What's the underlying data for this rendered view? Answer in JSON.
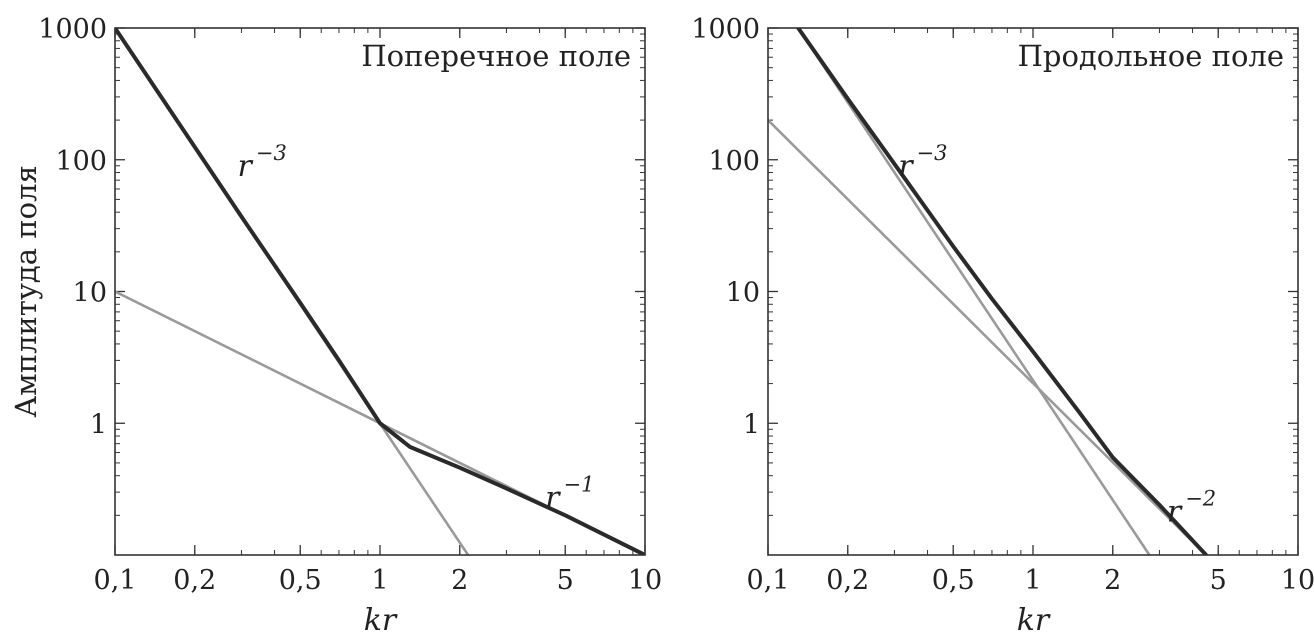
{
  "chart_data": [
    {
      "type": "line",
      "title": "Поперечное поле",
      "xscale": "log",
      "yscale": "log",
      "xlim": [
        0.1,
        10
      ],
      "ylim": [
        0.1,
        1000
      ],
      "xticks": [
        0.1,
        0.2,
        0.5,
        1,
        2,
        5,
        10
      ],
      "xtick_labels": [
        "0,1",
        "0,2",
        "0,5",
        "1",
        "2",
        "5",
        "10"
      ],
      "yticks": [
        1,
        10,
        100,
        1000
      ],
      "ytick_labels": [
        "1",
        "10",
        "100",
        "1000"
      ],
      "xlabel": "kr",
      "ylabel": "Амплитуда поля",
      "series": [
        {
          "name": "amplitude",
          "color": "#2a2a2a",
          "x": [
            0.1,
            0.15,
            0.2,
            0.3,
            0.5,
            0.7,
            1.0,
            1.3,
            2.0,
            3.0,
            5.0,
            10.0
          ],
          "y": [
            1000,
            296,
            125,
            37,
            8.2,
            3.0,
            1.0,
            0.66,
            0.46,
            0.32,
            0.2,
            0.1
          ]
        },
        {
          "name": "r^-3 asymptote",
          "color": "#9a9a9a",
          "x": [
            0.1,
            2.15
          ],
          "y": [
            1000,
            0.1
          ]
        },
        {
          "name": "r^-1 asymptote",
          "color": "#9a9a9a",
          "x": [
            0.1,
            10
          ],
          "y": [
            10,
            0.1
          ]
        }
      ],
      "annotations": [
        {
          "base": "r",
          "exponent": "−3",
          "x": 0.29,
          "y": 75
        },
        {
          "base": "r",
          "exponent": "−1",
          "x": 4.2,
          "y": 0.23
        }
      ]
    },
    {
      "type": "line",
      "title": "Продольное поле",
      "xscale": "log",
      "yscale": "log",
      "xlim": [
        0.1,
        10
      ],
      "ylim": [
        0.1,
        1000
      ],
      "xticks": [
        0.1,
        0.2,
        0.5,
        1,
        2,
        5,
        10
      ],
      "xtick_labels": [
        "0,1",
        "0,2",
        "0,5",
        "1",
        "2",
        "5",
        "10"
      ],
      "yticks": [
        1,
        10,
        100,
        1000
      ],
      "ytick_labels": [
        "1",
        "10",
        "100",
        "1000"
      ],
      "xlabel": "kr",
      "ylabel": "",
      "series": [
        {
          "name": "amplitude",
          "color": "#2a2a2a",
          "x": [
            0.13,
            0.2,
            0.3,
            0.5,
            0.7,
            1.0,
            1.5,
            2.0,
            3.0,
            4.5
          ],
          "y": [
            1000,
            290,
            93,
            22,
            8.8,
            3.5,
            1.2,
            0.55,
            0.24,
            0.1
          ]
        },
        {
          "name": "r^-3 asymptote",
          "color": "#9a9a9a",
          "x": [
            0.13,
            2.75
          ],
          "y": [
            1000,
            0.1
          ]
        },
        {
          "name": "r^-2 asymptote",
          "color": "#9a9a9a",
          "x": [
            0.1,
            4.5
          ],
          "y": [
            200,
            0.1
          ]
        }
      ],
      "annotations": [
        {
          "base": "r",
          "exponent": "−3",
          "x": 0.31,
          "y": 75
        },
        {
          "base": "r",
          "exponent": "−2",
          "x": 3.2,
          "y": 0.18
        }
      ]
    }
  ]
}
